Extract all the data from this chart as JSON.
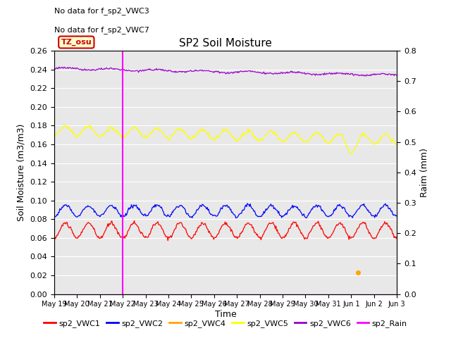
{
  "title": "SP2 Soil Moisture",
  "ylabel_left": "Soil Moisture (m3/m3)",
  "ylabel_right": "Raim (mm)",
  "xlabel": "Time",
  "no_data_text": [
    "No data for f_sp2_VWC3",
    "No data for f_sp2_VWC7"
  ],
  "annotation_label": "TZ_osu",
  "ylim_left": [
    0.0,
    0.26
  ],
  "ylim_right": [
    0.0,
    0.8
  ],
  "yticks_left": [
    0.0,
    0.02,
    0.04,
    0.06,
    0.08,
    0.1,
    0.12,
    0.14,
    0.16,
    0.18,
    0.2,
    0.22,
    0.24,
    0.26
  ],
  "yticks_right": [
    0.0,
    0.1,
    0.2,
    0.3,
    0.4,
    0.5,
    0.6,
    0.7,
    0.8
  ],
  "xtick_labels": [
    "May 19",
    "May 20",
    "May 21",
    "May 22",
    "May 23",
    "May 24",
    "May 25",
    "May 26",
    "May 27",
    "May 28",
    "May 29",
    "May 30",
    "May 31",
    "Jun 1",
    "Jun 2",
    "Jun 3"
  ],
  "colors": {
    "sp2_VWC1": "#ff0000",
    "sp2_VWC2": "#0000ff",
    "sp2_VWC4": "#ffa500",
    "sp2_VWC5": "#ffff00",
    "sp2_VWC6": "#9900cc",
    "sp2_Rain": "#ff00ff"
  },
  "background_color": "#e8e8e8",
  "n_points": 480
}
